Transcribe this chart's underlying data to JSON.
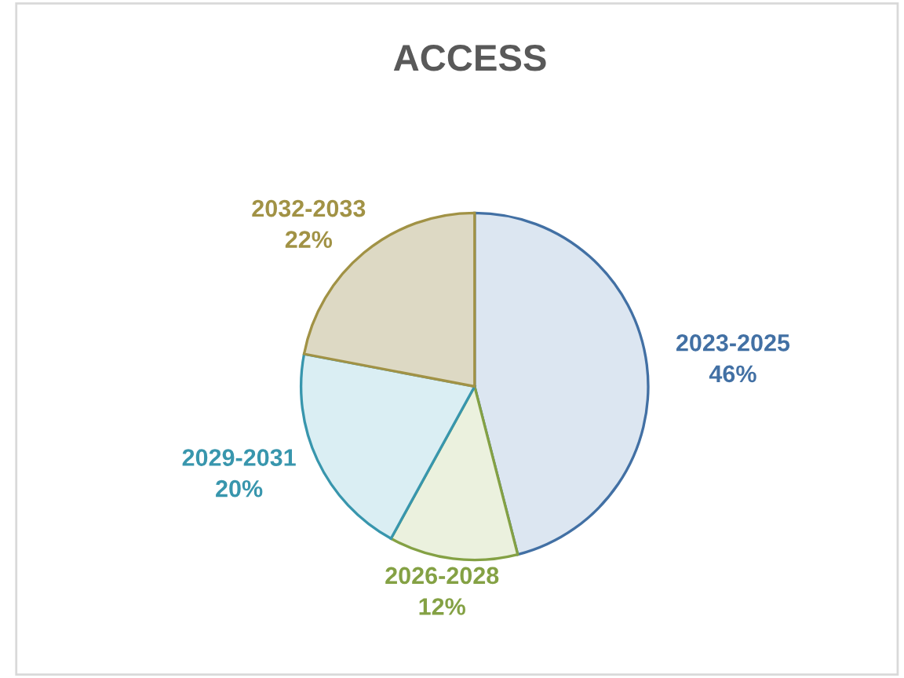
{
  "chart_data": {
    "type": "pie",
    "title": "ACCESS",
    "categories": [
      "2023-2025",
      "2026-2028",
      "2029-2031",
      "2032-2033"
    ],
    "values": [
      46,
      12,
      20,
      22
    ],
    "colors": [
      "#dce6f1",
      "#ebf1de",
      "#daeef3",
      "#ddd9c4"
    ],
    "value_labels": [
      "46%",
      "12%",
      "20%",
      "22%"
    ],
    "legend": false
  }
}
